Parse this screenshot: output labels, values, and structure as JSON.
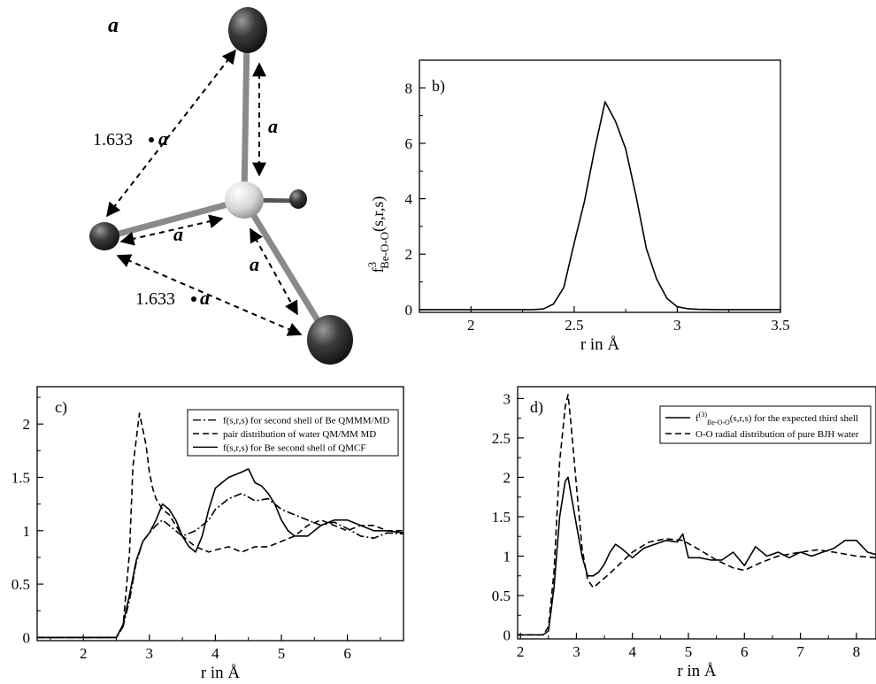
{
  "panel_a": {
    "label": "a",
    "edge_label_1": "1.633",
    "edge_label_2": "1.633",
    "edge_symbol": "a",
    "bond_label": "a",
    "colors": {
      "atom": "#3c3c3c",
      "center": "#d6d6d6",
      "bond": "#8a8a8a"
    }
  },
  "chart_data": [
    {
      "id": "b",
      "type": "line",
      "panel_label": "b)",
      "xlabel": "r in Å",
      "ylabel_main": "f",
      "ylabel_sup": "3",
      "ylabel_sub": "Be-O-O",
      "ylabel_tail": "(s,r,s)",
      "xlim": [
        1.75,
        3.5
      ],
      "ylim": [
        -0.1,
        9
      ],
      "xticks": [
        2,
        2.5,
        3,
        3.5
      ],
      "yticks": [
        0,
        2,
        4,
        6,
        8
      ],
      "grid": false,
      "series": [
        {
          "style": "solid",
          "x": [
            1.75,
            2.3,
            2.35,
            2.4,
            2.45,
            2.5,
            2.55,
            2.6,
            2.65,
            2.7,
            2.75,
            2.8,
            2.85,
            2.9,
            2.95,
            3.0,
            3.05,
            3.1,
            3.2,
            3.5
          ],
          "y": [
            0,
            0,
            0.02,
            0.2,
            0.8,
            2.4,
            3.9,
            5.8,
            7.5,
            6.8,
            5.8,
            4.1,
            2.2,
            1.1,
            0.4,
            0.1,
            0.03,
            0.01,
            0,
            0
          ]
        }
      ]
    },
    {
      "id": "c",
      "type": "line",
      "panel_label": "c)",
      "xlabel": "r in Å",
      "xlim": [
        1.3,
        6.85
      ],
      "ylim": [
        -0.03,
        2.35
      ],
      "xticks": [
        2,
        3,
        4,
        5,
        6
      ],
      "yticks": [
        0,
        0.5,
        1,
        1.5,
        2
      ],
      "grid": false,
      "legend_position": "top-right",
      "series": [
        {
          "name": "f(s,r,s) for second shell of Be QMMM/MD",
          "style": "dashdot",
          "x": [
            1.3,
            2.5,
            2.6,
            2.7,
            2.8,
            2.9,
            3.0,
            3.1,
            3.2,
            3.3,
            3.5,
            3.7,
            3.9,
            4.0,
            4.2,
            4.4,
            4.6,
            4.8,
            5.0,
            5.2,
            5.4,
            5.6,
            5.8,
            6.0,
            6.2,
            6.4,
            6.6,
            6.85
          ],
          "y": [
            0,
            0,
            0.1,
            0.35,
            0.7,
            0.9,
            0.98,
            1.05,
            1.1,
            1.05,
            0.95,
            1.0,
            1.1,
            1.2,
            1.3,
            1.35,
            1.28,
            1.3,
            1.2,
            1.15,
            1.1,
            1.05,
            1.08,
            1.02,
            0.95,
            0.93,
            0.98,
            0.97
          ]
        },
        {
          "name": "pair distribution of  water QM/MM MD",
          "style": "dashed",
          "x": [
            1.3,
            2.5,
            2.6,
            2.7,
            2.75,
            2.8,
            2.85,
            2.9,
            2.95,
            3.0,
            3.05,
            3.1,
            3.2,
            3.3,
            3.4,
            3.5,
            3.7,
            3.9,
            4.0,
            4.2,
            4.4,
            4.6,
            4.8,
            5.0,
            5.2,
            5.4,
            5.6,
            5.8,
            6.0,
            6.2,
            6.4,
            6.6,
            6.85
          ],
          "y": [
            0,
            0,
            0.1,
            0.8,
            1.6,
            1.85,
            2.1,
            1.95,
            1.8,
            1.55,
            1.4,
            1.3,
            1.2,
            1.15,
            1.05,
            0.95,
            0.85,
            0.8,
            0.82,
            0.85,
            0.8,
            0.85,
            0.85,
            0.9,
            0.95,
            1.05,
            1.1,
            1.05,
            1.0,
            1.05,
            1.05,
            1.0,
            1.0
          ]
        },
        {
          "name": "f(s,r,s) for Be second shell of QMCF",
          "style": "solid",
          "x": [
            1.3,
            2.5,
            2.6,
            2.7,
            2.8,
            2.9,
            3.0,
            3.1,
            3.2,
            3.3,
            3.4,
            3.5,
            3.6,
            3.7,
            3.8,
            3.9,
            4.0,
            4.2,
            4.4,
            4.5,
            4.6,
            4.7,
            4.8,
            4.9,
            5.0,
            5.1,
            5.2,
            5.4,
            5.6,
            5.8,
            6.0,
            6.2,
            6.4,
            6.6,
            6.85
          ],
          "y": [
            0,
            0,
            0.12,
            0.4,
            0.72,
            0.9,
            0.98,
            1.1,
            1.25,
            1.2,
            1.1,
            0.95,
            0.85,
            0.8,
            0.95,
            1.2,
            1.4,
            1.5,
            1.55,
            1.58,
            1.45,
            1.42,
            1.35,
            1.25,
            1.1,
            1.0,
            0.95,
            0.95,
            1.05,
            1.1,
            1.1,
            1.05,
            1.0,
            1.0,
            0.98
          ]
        }
      ]
    },
    {
      "id": "d",
      "type": "line",
      "panel_label": "d)",
      "xlabel": "r in Å",
      "xlim": [
        1.95,
        8.35
      ],
      "ylim": [
        -0.05,
        3.15
      ],
      "xticks": [
        2,
        3,
        4,
        5,
        6,
        7,
        8
      ],
      "yticks": [
        0,
        0.5,
        1,
        1.5,
        2,
        2.5,
        3
      ],
      "grid": false,
      "legend_position": "top-right",
      "series": [
        {
          "name_main": "f",
          "name_sup": "(3)",
          "name_sub": "Be-O-O",
          "name_tail": "(s,r,s) for the expected  third shell",
          "style": "solid",
          "x": [
            1.95,
            2.4,
            2.5,
            2.6,
            2.7,
            2.8,
            2.85,
            2.9,
            3.0,
            3.1,
            3.2,
            3.3,
            3.4,
            3.5,
            3.6,
            3.7,
            3.8,
            4.0,
            4.2,
            4.4,
            4.6,
            4.8,
            4.9,
            5.0,
            5.2,
            5.4,
            5.6,
            5.8,
            6.0,
            6.2,
            6.4,
            6.6,
            6.8,
            7.0,
            7.2,
            7.4,
            7.6,
            7.8,
            8.0,
            8.2,
            8.35
          ],
          "y": [
            0,
            0,
            0.05,
            0.6,
            1.5,
            1.95,
            2.0,
            1.8,
            1.4,
            1.0,
            0.75,
            0.75,
            0.8,
            0.9,
            1.05,
            1.15,
            1.1,
            0.98,
            1.1,
            1.15,
            1.2,
            1.18,
            1.28,
            0.98,
            0.98,
            0.95,
            0.95,
            1.05,
            0.88,
            1.12,
            1.0,
            1.05,
            0.98,
            1.05,
            1.0,
            1.05,
            1.1,
            1.2,
            1.2,
            1.05,
            1.02
          ]
        },
        {
          "name": "O-O radial distribution of pure BJH water",
          "style": "dashed",
          "x": [
            1.95,
            2.4,
            2.5,
            2.6,
            2.7,
            2.8,
            2.85,
            2.9,
            3.0,
            3.1,
            3.2,
            3.3,
            3.5,
            3.7,
            4.0,
            4.3,
            4.6,
            4.9,
            5.2,
            5.5,
            5.8,
            6.0,
            6.3,
            6.6,
            7.0,
            7.3,
            7.6,
            8.0,
            8.35
          ],
          "y": [
            0,
            0,
            0.1,
            0.8,
            2.2,
            2.9,
            3.05,
            2.7,
            1.9,
            1.1,
            0.7,
            0.6,
            0.72,
            0.85,
            1.05,
            1.18,
            1.22,
            1.2,
            1.08,
            0.95,
            0.85,
            0.82,
            0.92,
            1.0,
            1.05,
            1.08,
            1.05,
            1.0,
            0.98
          ]
        }
      ]
    }
  ]
}
